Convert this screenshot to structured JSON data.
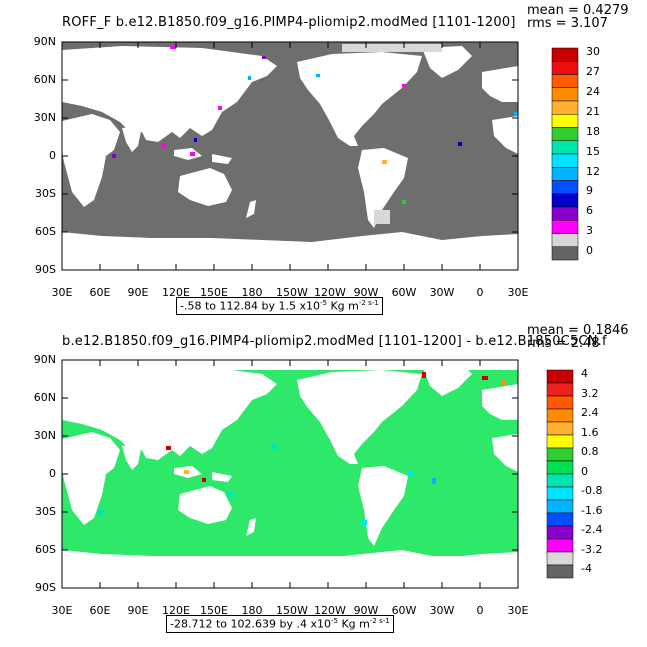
{
  "panels": [
    {
      "title": "ROFF_F b.e12.B1850.f09_g16.PIMP4-pliomip2.modMed [1101-1200]",
      "mean": "mean = 0.4279",
      "rms": "rms = 3.107",
      "lat_labels": [
        "90N",
        "60N",
        "30N",
        "0",
        "30S",
        "60S",
        "90S"
      ],
      "lon_labels": [
        "30E",
        "60E",
        "90E",
        "120E",
        "150E",
        "180",
        "150W",
        "120W",
        "90W",
        "60W",
        "30W",
        "0",
        "30E"
      ],
      "colorbar_labels": [
        "30",
        "27",
        "24",
        "21",
        "18",
        "15",
        "12",
        "9",
        "6",
        "3",
        "0"
      ],
      "colorbar_colors": [
        "#c80000",
        "#ee1010",
        "#ff5a00",
        "#ff8c00",
        "#ffb030",
        "#ffff00",
        "#32cd32",
        "#00e5b0",
        "#00e5ff",
        "#00b4ff",
        "#0050ff",
        "#0000cd",
        "#8a00cd",
        "#ff00ff",
        "#d8d8d8",
        "#646464"
      ],
      "range_text": "-.58 to 112.84 by 1.5 x10",
      "range_exp": "-5",
      "range_units": " Kg m",
      "range_units_exp": "-2 s-1",
      "ocean_color": "#6e6e6e",
      "land_color": "#ffffff"
    },
    {
      "title": "b.e12.B1850.f09_g16.PIMP4-pliomip2.modMed [1101-1200] - b.e12.B1850C5CN.f",
      "mean": "mean = 0.1846",
      "rms": "rms = 2.48",
      "lat_labels": [
        "90N",
        "60N",
        "30N",
        "0",
        "30S",
        "60S",
        "90S"
      ],
      "lon_labels": [
        "30E",
        "60E",
        "90E",
        "120E",
        "150E",
        "180",
        "150W",
        "120W",
        "90W",
        "60W",
        "30W",
        "0",
        "30E"
      ],
      "colorbar_labels": [
        "4",
        "3.2",
        "2.4",
        "1.6",
        "0.8",
        "0",
        "-0.8",
        "-1.6",
        "-2.4",
        "-3.2",
        "-4"
      ],
      "colorbar_colors": [
        "#c80000",
        "#ee2020",
        "#ff5a00",
        "#ff8c00",
        "#ffb030",
        "#ffff00",
        "#32cd32",
        "#00e050",
        "#00e5b0",
        "#00e5ff",
        "#00b4ff",
        "#0050ff",
        "#8a00cd",
        "#ff00ff",
        "#d8d8d8",
        "#646464"
      ],
      "range_text": "-28.712 to 102.639 by .4 x10",
      "range_exp": "-5",
      "range_units": " Kg m",
      "range_units_exp": "-2 s-1",
      "ocean_color": "#2ee86a",
      "land_color": "#ffffff"
    }
  ]
}
